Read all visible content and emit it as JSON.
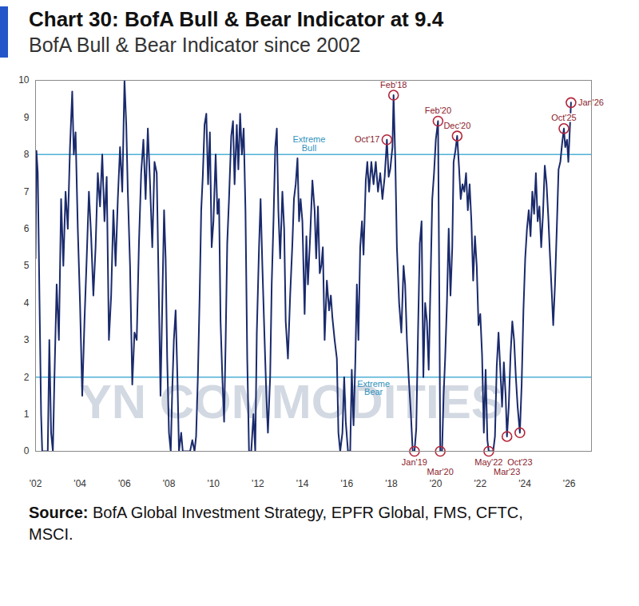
{
  "chart_data": {
    "type": "line",
    "title": "Chart 30: BofA Bull & Bear Indicator at 9.4",
    "subtitle": "BofA Bull & Bear Indicator since 2002",
    "source_label": "Source:",
    "source": "BofA Global Investment Strategy, EPFR Global, FMS, CFTC, MSCI.",
    "watermark": "YN COMMODITIES",
    "color": "#1a2a6c",
    "x": [
      2002.0,
      2002.04,
      2002.1,
      2002.18,
      2002.25,
      2002.3,
      2002.55,
      2002.62,
      2002.7,
      2002.78,
      2002.85,
      2002.95,
      2003.05,
      2003.15,
      2003.25,
      2003.35,
      2003.45,
      2003.55,
      2003.65,
      2003.72,
      2003.8,
      2003.9,
      2004.0,
      2004.1,
      2004.2,
      2004.3,
      2004.4,
      2004.5,
      2004.6,
      2004.7,
      2004.8,
      2004.9,
      2005.0,
      2005.1,
      2005.2,
      2005.3,
      2005.4,
      2005.5,
      2005.6,
      2005.7,
      2005.8,
      2005.9,
      2006.0,
      2006.08,
      2006.15,
      2006.25,
      2006.35,
      2006.45,
      2006.55,
      2006.65,
      2006.75,
      2006.85,
      2006.95,
      2007.05,
      2007.15,
      2007.25,
      2007.35,
      2007.45,
      2007.55,
      2007.62,
      2007.7,
      2007.78,
      2007.85,
      2007.92,
      2008.0,
      2008.08,
      2008.15,
      2008.22,
      2008.3,
      2008.38,
      2008.45,
      2008.55,
      2008.62,
      2008.95,
      2009.05,
      2009.15,
      2009.22,
      2009.3,
      2009.38,
      2009.45,
      2009.52,
      2009.6,
      2009.68,
      2009.76,
      2009.84,
      2009.92,
      2010.0,
      2010.1,
      2010.18,
      2010.25,
      2010.32,
      2010.4,
      2010.48,
      2010.55,
      2010.62,
      2010.7,
      2010.8,
      2010.88,
      2010.95,
      2011.05,
      2011.12,
      2011.2,
      2011.28,
      2011.36,
      2011.44,
      2011.52,
      2011.6,
      2011.7,
      2011.8,
      2011.88,
      2011.95,
      2012.05,
      2012.12,
      2012.2,
      2012.3,
      2012.38,
      2012.45,
      2012.55,
      2012.62,
      2012.7,
      2012.78,
      2012.85,
      2012.92,
      2013.0,
      2013.1,
      2013.18,
      2013.25,
      2013.35,
      2013.45,
      2013.55,
      2013.62,
      2013.7,
      2013.78,
      2013.85,
      2013.92,
      2014.0,
      2014.1,
      2014.18,
      2014.25,
      2014.35,
      2014.45,
      2014.55,
      2014.62,
      2014.7,
      2014.78,
      2014.85,
      2014.92,
      2015.0,
      2015.1,
      2015.2,
      2015.28,
      2015.35,
      2015.45,
      2015.55,
      2015.62,
      2015.7,
      2015.8,
      2015.88,
      2015.95,
      2016.05,
      2016.15,
      2016.22,
      2016.3,
      2016.38,
      2016.45,
      2016.52,
      2016.6,
      2016.68,
      2016.75,
      2016.85,
      2016.92,
      2017.0,
      2017.1,
      2017.2,
      2017.3,
      2017.4,
      2017.5,
      2017.6,
      2017.7,
      2017.8,
      2017.88,
      2017.95,
      2018.05,
      2018.1,
      2018.18,
      2018.25,
      2018.35,
      2018.45,
      2018.55,
      2018.62,
      2018.7,
      2018.78,
      2018.88,
      2018.96,
      2019.04,
      2019.12,
      2019.2,
      2019.28,
      2019.36,
      2019.44,
      2019.52,
      2019.6,
      2019.68,
      2019.76,
      2019.84,
      2019.92,
      2020.0,
      2020.1,
      2020.16,
      2020.2,
      2020.28,
      2020.35,
      2020.42,
      2020.5,
      2020.58,
      2020.66,
      2020.74,
      2020.8,
      2020.88,
      2020.96,
      2021.04,
      2021.12,
      2021.2,
      2021.28,
      2021.36,
      2021.44,
      2021.52,
      2021.6,
      2021.68,
      2021.76,
      2021.84,
      2021.92,
      2022.0,
      2022.08,
      2022.16,
      2022.24,
      2022.32,
      2022.38,
      2022.5,
      2022.58,
      2022.66,
      2022.74,
      2022.82,
      2022.9,
      2022.98,
      2023.06,
      2023.14,
      2023.2,
      2023.28,
      2023.36,
      2023.44,
      2023.52,
      2023.6,
      2023.68,
      2023.78,
      2023.86,
      2023.94,
      2024.02,
      2024.1,
      2024.18,
      2024.26,
      2024.34,
      2024.42,
      2024.5,
      2024.58,
      2024.66,
      2024.74,
      2024.82,
      2024.9,
      2024.98,
      2025.06,
      2025.14,
      2025.22,
      2025.28,
      2025.36,
      2025.44,
      2025.52,
      2025.6,
      2025.68,
      2025.76,
      2025.82,
      2025.9,
      2025.96,
      2026.02,
      2026.08
    ],
    "values": [
      5.2,
      8.1,
      7.5,
      4,
      1,
      0,
      0,
      3,
      0.5,
      0,
      2,
      4.5,
      3,
      6.8,
      5,
      7,
      6,
      8.2,
      9.7,
      8,
      8.6,
      6,
      4,
      1.5,
      3.5,
      5.2,
      7,
      5.8,
      4.2,
      5.5,
      7.5,
      6.6,
      8,
      6.2,
      7.4,
      3,
      4.2,
      6.5,
      5,
      6.8,
      8.2,
      7,
      10,
      8.8,
      7,
      5,
      1.8,
      3.2,
      3,
      5.6,
      7.5,
      8.4,
      6.8,
      8.7,
      7.2,
      5.5,
      7.8,
      7.5,
      4,
      1.5,
      4,
      6.5,
      5.2,
      2.5,
      0.5,
      0,
      1.7,
      3,
      3.8,
      2,
      0,
      0.5,
      0,
      0,
      0.3,
      0,
      0.4,
      2,
      4.2,
      6.5,
      7.4,
      8.8,
      9.1,
      7.2,
      8.6,
      5.5,
      6.2,
      8,
      6.4,
      6.8,
      3.5,
      2,
      0.8,
      3,
      5.6,
      6.8,
      8.5,
      8.9,
      7.2,
      8.8,
      7.6,
      9.1,
      8,
      8.7,
      6.5,
      2.5,
      0,
      0,
      1,
      0,
      3.2,
      5.5,
      6.8,
      5,
      3,
      1.5,
      0.5,
      2,
      4.5,
      6.2,
      8.2,
      8.7,
      6.5,
      5.2,
      7,
      6,
      3.5,
      2.5,
      4.2,
      5.6,
      6.8,
      7.2,
      7.9,
      6.2,
      6.8,
      6.2,
      3.7,
      5.8,
      4.5,
      5.8,
      7.3,
      6.5,
      5.2,
      6.6,
      4.8,
      5,
      5.5,
      3,
      4.6,
      3.8,
      4.2,
      3.6,
      3,
      2.5,
      0.5,
      0,
      0.5,
      2,
      0.8,
      0,
      0,
      2.2,
      0.7,
      2.4,
      4.5,
      3,
      5.5,
      6.2,
      5.3,
      7.3,
      7.8,
      7,
      7.8,
      7.2,
      7.8,
      7,
      7.5,
      6.8,
      7.4,
      8.4,
      7.4,
      7.6,
      8.2,
      9.6,
      7.8,
      5.5,
      4,
      3.2,
      5,
      4.5,
      3,
      2,
      1,
      0,
      0,
      0.6,
      3.2,
      5.6,
      6.2,
      2,
      4,
      3.5,
      2.2,
      4.5,
      6.8,
      7.5,
      8.4,
      8.9,
      4,
      0,
      0,
      1.5,
      2.5,
      4,
      6,
      4.2,
      5.5,
      7.8,
      8.1,
      8.5,
      7.7,
      6.8,
      7.2,
      7,
      7.5,
      6.5,
      7.2,
      6.2,
      4.6,
      5.8,
      5,
      3.4,
      3.7,
      2.6,
      0.5,
      2.2,
      0.3,
      0,
      0,
      0,
      0.4,
      2.3,
      3.2,
      2.2,
      1.2,
      2.4,
      1.5,
      0.4,
      1.2,
      2.6,
      3.5,
      3,
      2,
      1.2,
      0.5,
      1.8,
      3.8,
      5.2,
      6,
      6.5,
      5.8,
      7,
      6.4,
      7.5,
      6.2,
      6.6,
      5.5,
      6.4,
      7.7,
      7.2,
      6.3,
      5.2,
      4.2,
      3.4,
      4.5,
      6,
      7.6,
      7.8,
      8.3,
      8.7,
      8.2,
      8.4,
      7.8,
      8.6,
      9.4
    ],
    "xlim": [
      2002,
      2027
    ],
    "xticks": [
      {
        "value": 2002,
        "label": "'02"
      },
      {
        "value": 2004,
        "label": "'04"
      },
      {
        "value": 2006,
        "label": "'06"
      },
      {
        "value": 2008,
        "label": "'08"
      },
      {
        "value": 2010,
        "label": "'10"
      },
      {
        "value": 2012,
        "label": "'12"
      },
      {
        "value": 2014,
        "label": "'14"
      },
      {
        "value": 2016,
        "label": "'16"
      },
      {
        "value": 2018,
        "label": "'18"
      },
      {
        "value": 2020,
        "label": "'20"
      },
      {
        "value": 2022,
        "label": "'22"
      },
      {
        "value": 2024,
        "label": "'24"
      },
      {
        "value": 2026,
        "label": "'26"
      }
    ],
    "ylim": [
      0,
      10
    ],
    "yticks": [
      0,
      1,
      2,
      3,
      4,
      5,
      6,
      7,
      8,
      9,
      10
    ],
    "reference_lines": [
      {
        "value": 8,
        "label": "Extreme Bull"
      },
      {
        "value": 2,
        "label": "Extreme Bear"
      }
    ],
    "annotations": [
      {
        "label": "Oct'17",
        "x": 2017.8,
        "y": 8.4
      },
      {
        "label": "Feb'18",
        "x": 2018.1,
        "y": 9.6
      },
      {
        "label": "Feb'20",
        "x": 2020.1,
        "y": 8.9
      },
      {
        "label": "Dec'20",
        "x": 2020.96,
        "y": 8.5
      },
      {
        "label": "Oct'25",
        "x": 2025.76,
        "y": 8.7
      },
      {
        "label": "Jan'26",
        "x": 2026.08,
        "y": 9.4
      },
      {
        "label": "Jan'19",
        "x": 2019.04,
        "y": 0
      },
      {
        "label": "Mar'20",
        "x": 2020.2,
        "y": 0
      },
      {
        "label": "May'22",
        "x": 2022.38,
        "y": 0
      },
      {
        "label": "Mar'23",
        "x": 2023.2,
        "y": 0.4
      },
      {
        "label": "Oct'23",
        "x": 2023.78,
        "y": 0.5
      }
    ]
  }
}
